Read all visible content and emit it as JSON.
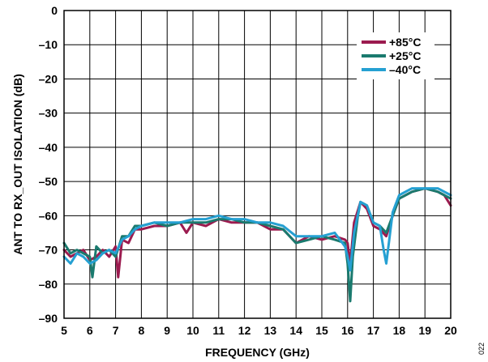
{
  "chart_data": {
    "type": "line",
    "xlabel": "FREQUENCY (GHz)",
    "ylabel": "ANT TO RX_OUT ISOLATION (dB)",
    "xlim": [
      5,
      20
    ],
    "ylim": [
      -90,
      0
    ],
    "xticks": [
      5,
      6,
      7,
      8,
      9,
      10,
      11,
      12,
      13,
      14,
      15,
      16,
      17,
      18,
      19,
      20
    ],
    "yticks": [
      0,
      -10,
      -20,
      -30,
      -40,
      -50,
      -60,
      -70,
      -80,
      -90
    ],
    "ytick_labels": [
      "0",
      "–10",
      "–20",
      "–30",
      "–40",
      "–50",
      "–60",
      "–70",
      "–80",
      "–90"
    ],
    "grid": true,
    "legend_position": "top-right",
    "figure_id": "022",
    "series": [
      {
        "name": "+85°C",
        "color": "#9b1b4f",
        "x": [
          5.0,
          5.25,
          5.5,
          5.75,
          6.0,
          6.25,
          6.5,
          6.75,
          7.0,
          7.1,
          7.25,
          7.5,
          7.75,
          8.0,
          8.5,
          9.0,
          9.5,
          9.75,
          10.0,
          10.5,
          11.0,
          11.5,
          12.0,
          12.5,
          13.0,
          13.5,
          14.0,
          14.25,
          14.5,
          15.0,
          15.5,
          15.9,
          16.0,
          16.1,
          16.25,
          16.5,
          16.75,
          17.0,
          17.25,
          17.5,
          17.75,
          18.0,
          18.5,
          19.0,
          19.5,
          19.75,
          20.0
        ],
        "y": [
          -70,
          -72,
          -71,
          -70,
          -73,
          -72,
          -70,
          -72,
          -69,
          -78,
          -67,
          -68,
          -64,
          -64,
          -63,
          -63,
          -62,
          -65,
          -62,
          -63,
          -61,
          -62,
          -62,
          -62,
          -64,
          -64,
          -68,
          -67,
          -66,
          -67,
          -66,
          -67,
          -68,
          -74,
          -62,
          -56,
          -58,
          -63,
          -64,
          -66,
          -60,
          -55,
          -53,
          -52,
          -53,
          -54,
          -57
        ]
      },
      {
        "name": "+25°C",
        "color": "#1a7a6e",
        "x": [
          5.0,
          5.25,
          5.5,
          5.75,
          6.0,
          6.1,
          6.25,
          6.5,
          6.75,
          7.0,
          7.25,
          7.5,
          7.75,
          8.0,
          8.5,
          9.0,
          9.5,
          10.0,
          10.5,
          11.0,
          11.5,
          12.0,
          12.5,
          13.0,
          13.5,
          14.0,
          14.5,
          15.0,
          15.5,
          15.9,
          16.0,
          16.1,
          16.2,
          16.4,
          16.5,
          16.75,
          17.0,
          17.25,
          17.5,
          17.75,
          18.0,
          18.5,
          19.0,
          19.5,
          20.0
        ],
        "y": [
          -68,
          -71,
          -70,
          -71,
          -72,
          -78,
          -69,
          -71,
          -70,
          -72,
          -66,
          -66,
          -63,
          -63,
          -62,
          -63,
          -62,
          -62,
          -62,
          -61,
          -61,
          -62,
          -62,
          -63,
          -64,
          -68,
          -67,
          -66,
          -67,
          -68,
          -74,
          -85,
          -72,
          -60,
          -56,
          -57,
          -62,
          -63,
          -65,
          -60,
          -55,
          -53,
          -52,
          -53,
          -55
        ]
      },
      {
        "name": "–40°C",
        "color": "#25a0d2",
        "x": [
          5.0,
          5.25,
          5.5,
          5.75,
          6.0,
          6.25,
          6.5,
          6.75,
          7.0,
          7.25,
          7.5,
          7.75,
          8.0,
          8.5,
          9.0,
          9.5,
          10.0,
          10.5,
          11.0,
          11.5,
          12.0,
          12.5,
          13.0,
          13.5,
          14.0,
          14.5,
          15.0,
          15.5,
          15.9,
          16.0,
          16.1,
          16.25,
          16.5,
          16.75,
          17.0,
          17.25,
          17.4,
          17.5,
          17.6,
          17.75,
          18.0,
          18.5,
          19.0,
          19.5,
          20.0
        ],
        "y": [
          -72,
          -74,
          -71,
          -72,
          -74,
          -73,
          -71,
          -70,
          -71,
          -67,
          -66,
          -64,
          -63,
          -62,
          -62,
          -62,
          -61,
          -61,
          -60,
          -61,
          -61,
          -62,
          -62,
          -63,
          -66,
          -66,
          -66,
          -65,
          -69,
          -72,
          -76,
          -65,
          -56,
          -57,
          -62,
          -63,
          -70,
          -74,
          -68,
          -59,
          -54,
          -52,
          -52,
          -52,
          -54
        ]
      }
    ]
  }
}
